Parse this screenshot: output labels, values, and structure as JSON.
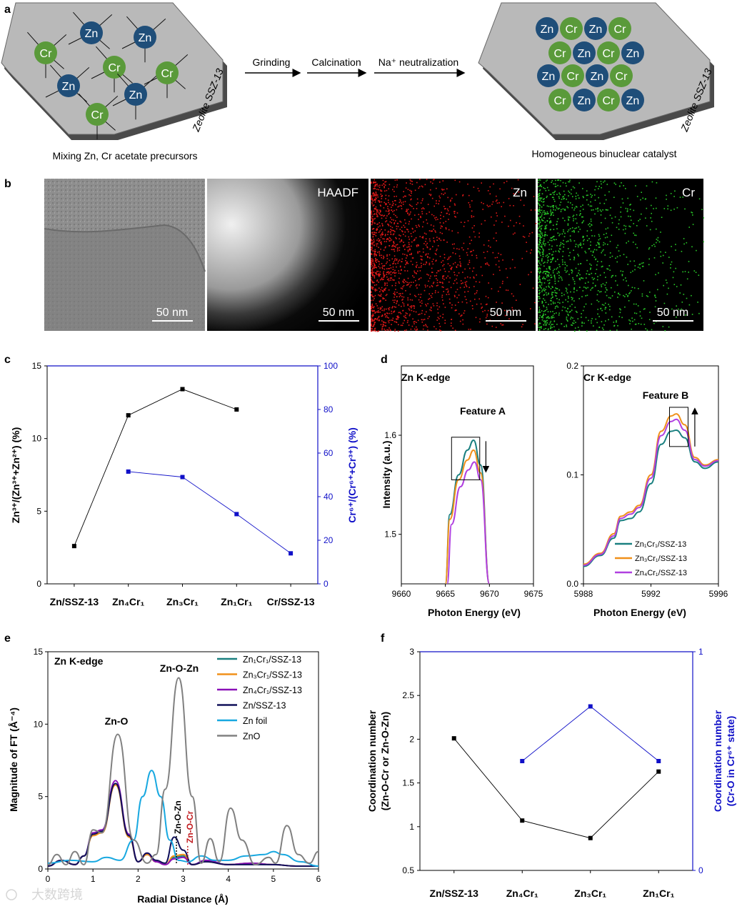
{
  "panel_a": {
    "letter": "a",
    "left_caption": "Mixing Zn, Cr acetate precursors",
    "right_caption": "Homogeneous binuclear catalyst",
    "zeolite_label": "Zeolite SSZ-13",
    "steps": [
      "Grinding",
      "Calcination",
      "Na⁺ neutralization"
    ],
    "zn_label": "Zn",
    "cr_label": "Cr",
    "colors": {
      "zn": "#1f4e79",
      "cr": "#5a9a3a",
      "plate": "#b7b7b7"
    }
  },
  "panel_b": {
    "letter": "b",
    "images": [
      {
        "label": "",
        "scale": "50 nm"
      },
      {
        "label": "HAADF",
        "scale": "50 nm"
      },
      {
        "label": "Zn",
        "scale": "50 nm"
      },
      {
        "label": "Cr",
        "scale": "50 nm"
      }
    ]
  },
  "panel_c": {
    "letter": "c",
    "ylabel_left": "Zn³⁺/(Zn³⁺+Zn²⁺) (%)",
    "ylabel_right": "Cr⁶⁺/(Cr⁶⁺+Cr³⁺) (%)",
    "categories": [
      "Zn/SSZ-13",
      "Zn₄Cr₁",
      "Zn₃Cr₁",
      "Zn₁Cr₁",
      "Cr/SSZ-13"
    ]
  },
  "panel_d": {
    "letter": "d",
    "left_title": "Zn K-edge",
    "right_title": "Cr K-edge",
    "left_feature": "Feature A",
    "right_feature": "Feature B",
    "ylabel": "Intensity (a.u.)",
    "xlabel": "Photon Energy (eV)"
  },
  "panel_e": {
    "letter": "e",
    "title": "Zn K-edge",
    "ylabel": "Magnitude of FT (Å⁻⁴)",
    "xlabel": "Radial Distance (Å)",
    "annotations": [
      "Zn-O",
      "Zn-O-Zn",
      "Zn-O-Zn",
      "Zn-O-Cr"
    ]
  },
  "panel_f": {
    "letter": "f",
    "ylabel_left_1": "Coordination number",
    "ylabel_left_2": "(Zn-O-Cr or Zn-O-Zn)",
    "ylabel_right_1": "Coordination number",
    "ylabel_right_2": "(Cr-O in Cr⁶⁺ state)",
    "categories": [
      "Zn/SSZ-13",
      "Zn₄Cr₁",
      "Zn₃Cr₁",
      "Zn₁Cr₁"
    ]
  },
  "watermark": "大数跨境",
  "chart_data": [
    {
      "id": "c",
      "type": "line",
      "title": "",
      "categories": [
        "Zn/SSZ-13",
        "Zn₄Cr₁",
        "Zn₃Cr₁",
        "Zn₁Cr₁",
        "Cr/SSZ-13"
      ],
      "series": [
        {
          "name": "Zn³⁺/(Zn³⁺+Zn²⁺)",
          "axis": "left",
          "color": "#000000",
          "values": [
            2.6,
            11.6,
            13.4,
            12.0,
            null
          ]
        },
        {
          "name": "Cr⁶⁺/(Cr⁶⁺+Cr³⁺)",
          "axis": "right",
          "color": "#1010c8",
          "values": [
            null,
            51.5,
            49.0,
            32.0,
            14.0
          ]
        }
      ],
      "ylim_left": [
        0,
        15
      ],
      "ylim_right": [
        0,
        100
      ],
      "yticks_left": [
        0,
        5,
        10,
        15
      ],
      "yticks_right": [
        0,
        20,
        40,
        60,
        80,
        100
      ]
    },
    {
      "id": "d-left",
      "type": "line",
      "title": "Zn K-edge",
      "xlabel": "Photon Energy (eV)",
      "ylabel": "Intensity (a.u.)",
      "xlim": [
        9660,
        9675
      ],
      "ylim": [
        1.45,
        1.67
      ],
      "xticks": [
        9660,
        9665,
        9670,
        9675
      ],
      "yticks": [
        1.5,
        1.6
      ],
      "annotation": "Feature A",
      "series": [
        {
          "name": "Zn₁Cr₁/SSZ-13",
          "color": "#1a8080",
          "x": [
            9665.0,
            9665.5,
            9666.5,
            9667.5,
            9668.2,
            9669.0,
            9670.0
          ],
          "y": [
            1.45,
            1.52,
            1.56,
            1.585,
            1.595,
            1.57,
            1.45
          ]
        },
        {
          "name": "Zn₃Cr₁/SSZ-13",
          "color": "#f0901a",
          "x": [
            9665.0,
            9665.5,
            9666.5,
            9667.5,
            9668.2,
            9669.0,
            9670.0
          ],
          "y": [
            1.45,
            1.515,
            1.555,
            1.575,
            1.585,
            1.562,
            1.45
          ]
        },
        {
          "name": "Zn₄Cr₁/SSZ-13",
          "color": "#b040e0",
          "x": [
            9665.2,
            9665.7,
            9666.7,
            9667.6,
            9668.3,
            9669.0,
            9670.0
          ],
          "y": [
            1.45,
            1.51,
            1.548,
            1.565,
            1.573,
            1.555,
            1.45
          ]
        }
      ]
    },
    {
      "id": "d-right",
      "type": "line",
      "title": "Cr K-edge",
      "xlabel": "Photon Energy (eV)",
      "ylabel": "",
      "xlim": [
        5988,
        5996
      ],
      "ylim": [
        0,
        0.2
      ],
      "xticks": [
        5988,
        5992,
        5996
      ],
      "yticks": [
        0.0,
        0.1,
        0.2
      ],
      "annotation": "Feature B",
      "series": [
        {
          "name": "Zn₁Cr₁/SSZ-13",
          "color": "#1a8080",
          "x": [
            5988,
            5989,
            5989.8,
            5990.2,
            5990.8,
            5991.3,
            5992.0,
            5992.6,
            5993.2,
            5993.5,
            5994.0,
            5994.6,
            5995.2,
            5996
          ],
          "y": [
            0.016,
            0.026,
            0.042,
            0.058,
            0.06,
            0.066,
            0.092,
            0.128,
            0.14,
            0.141,
            0.134,
            0.112,
            0.106,
            0.112
          ]
        },
        {
          "name": "Zn₃Cr₁/SSZ-13",
          "color": "#f0901a",
          "x": [
            5988,
            5989,
            5989.8,
            5990.2,
            5990.8,
            5991.3,
            5992.0,
            5992.6,
            5993.2,
            5993.5,
            5994.0,
            5994.6,
            5995.2,
            5996
          ],
          "y": [
            0.018,
            0.028,
            0.046,
            0.062,
            0.066,
            0.072,
            0.1,
            0.14,
            0.154,
            0.156,
            0.146,
            0.116,
            0.109,
            0.114
          ]
        },
        {
          "name": "Zn₄Cr₁/SSZ-13",
          "color": "#b040e0",
          "x": [
            5988,
            5989,
            5989.8,
            5990.2,
            5990.8,
            5991.3,
            5992.0,
            5992.6,
            5993.2,
            5993.5,
            5994.0,
            5994.6,
            5995.2,
            5996
          ],
          "y": [
            0.017,
            0.027,
            0.044,
            0.06,
            0.064,
            0.07,
            0.097,
            0.136,
            0.149,
            0.151,
            0.141,
            0.114,
            0.108,
            0.113
          ]
        }
      ]
    },
    {
      "id": "e",
      "type": "line",
      "title": "Zn K-edge",
      "xlabel": "Radial Distance (Å)",
      "ylabel": "Magnitude of FT (Å⁻⁴)",
      "xlim": [
        0,
        6
      ],
      "ylim": [
        0,
        15
      ],
      "xticks": [
        0,
        1,
        2,
        3,
        4,
        5,
        6
      ],
      "yticks": [
        0,
        5,
        10,
        15
      ],
      "series": [
        {
          "name": "Zn₁Cr₁/SSZ-13",
          "color": "#1a8080",
          "x": [
            0,
            0.3,
            0.6,
            0.8,
            1.0,
            1.2,
            1.5,
            1.8,
            2.0,
            2.2,
            2.4,
            2.6,
            2.8,
            3.0,
            3.2,
            3.5,
            4.0,
            4.5,
            5.0,
            5.5,
            6.0
          ],
          "y": [
            0.2,
            0.6,
            0.3,
            0.9,
            2.4,
            2.6,
            5.9,
            2.3,
            0.5,
            1.0,
            0.5,
            0.3,
            0.8,
            0.9,
            0.3,
            0.6,
            0.3,
            0.4,
            0.3,
            0.2,
            0.2
          ]
        },
        {
          "name": "Zn₃Cr₁/SSZ-13",
          "color": "#f0901a",
          "x": [
            0,
            0.3,
            0.6,
            0.8,
            1.0,
            1.2,
            1.5,
            1.8,
            2.0,
            2.2,
            2.4,
            2.6,
            2.8,
            3.0,
            3.2,
            3.5,
            4.0,
            4.5,
            5.0,
            5.5,
            6.0
          ],
          "y": [
            0.2,
            0.6,
            0.3,
            0.9,
            2.3,
            2.5,
            5.8,
            2.2,
            0.5,
            1.0,
            0.5,
            0.3,
            0.9,
            1.0,
            0.3,
            0.5,
            0.3,
            0.4,
            0.3,
            0.2,
            0.2
          ]
        },
        {
          "name": "Zn₄Cr₁/SSZ-13",
          "color": "#8a10b8",
          "x": [
            0,
            0.3,
            0.6,
            0.8,
            1.0,
            1.2,
            1.5,
            1.8,
            2.0,
            2.2,
            2.4,
            2.6,
            2.8,
            3.0,
            3.2,
            3.5,
            4.0,
            4.5,
            5.0,
            5.5,
            6.0
          ],
          "y": [
            0.2,
            0.6,
            0.3,
            0.9,
            2.5,
            2.7,
            6.1,
            2.4,
            0.5,
            1.1,
            0.5,
            0.3,
            0.7,
            0.8,
            0.3,
            0.6,
            0.3,
            0.4,
            0.3,
            0.2,
            0.2
          ]
        },
        {
          "name": "Zn/SSZ-13",
          "color": "#10105a",
          "x": [
            0,
            0.3,
            0.6,
            0.8,
            1.0,
            1.2,
            1.5,
            1.8,
            2.0,
            2.2,
            2.4,
            2.6,
            2.8,
            3.0,
            3.2,
            3.5,
            4.0,
            4.5,
            5.0,
            5.5,
            6.0
          ],
          "y": [
            0.2,
            0.6,
            0.3,
            0.9,
            2.4,
            2.6,
            5.9,
            2.3,
            0.5,
            1.1,
            0.6,
            0.4,
            2.2,
            1.3,
            0.3,
            0.5,
            0.3,
            0.3,
            0.3,
            0.2,
            0.2
          ]
        },
        {
          "name": "Zn foil",
          "color": "#18a8e0",
          "x": [
            0,
            0.5,
            1.0,
            1.3,
            1.6,
            1.9,
            2.1,
            2.3,
            2.5,
            2.7,
            2.9,
            3.1,
            3.4,
            3.7,
            4.0,
            4.4,
            4.8,
            5.0,
            5.2,
            5.6,
            6.0
          ],
          "y": [
            0.4,
            0.6,
            0.5,
            0.8,
            0.6,
            2.0,
            5.0,
            6.8,
            5.0,
            2.0,
            0.6,
            0.5,
            0.9,
            0.6,
            0.6,
            0.9,
            1.0,
            1.2,
            1.0,
            0.5,
            0.2
          ]
        },
        {
          "name": "ZnO",
          "color": "#808080",
          "x": [
            0,
            0.2,
            0.4,
            0.6,
            0.8,
            1.0,
            1.2,
            1.55,
            1.9,
            2.2,
            2.4,
            2.6,
            2.9,
            3.2,
            3.4,
            3.6,
            3.8,
            4.05,
            4.3,
            4.6,
            4.9,
            5.05,
            5.3,
            5.55,
            5.8,
            6.0
          ],
          "y": [
            0.3,
            1.0,
            0.3,
            1.2,
            0.3,
            2.7,
            2.5,
            9.3,
            2.0,
            0.4,
            1.0,
            5.5,
            13.2,
            5.0,
            0.4,
            2.1,
            0.5,
            4.2,
            2.0,
            0.3,
            0.8,
            0.4,
            3.0,
            1.0,
            0.4,
            1.2
          ]
        }
      ]
    },
    {
      "id": "f",
      "type": "line",
      "title": "",
      "categories": [
        "Zn/SSZ-13",
        "Zn₄Cr₁",
        "Zn₃Cr₁",
        "Zn₁Cr₁"
      ],
      "series": [
        {
          "name": "Zn-O-Cr or Zn-O-Zn",
          "axis": "left",
          "color": "#000000",
          "values": [
            2.01,
            1.07,
            0.87,
            1.63
          ]
        },
        {
          "name": "Cr-O in Cr⁶⁺ state",
          "axis": "right",
          "color": "#1010c8",
          "values": [
            null,
            0.5,
            0.75,
            0.5
          ]
        }
      ],
      "ylim_left": [
        0.5,
        3.0
      ],
      "ylim_right": [
        0,
        1
      ],
      "yticks_left": [
        0.5,
        1.0,
        1.5,
        2.0,
        2.5,
        3.0
      ],
      "yticks_right": [
        0,
        1
      ]
    }
  ]
}
